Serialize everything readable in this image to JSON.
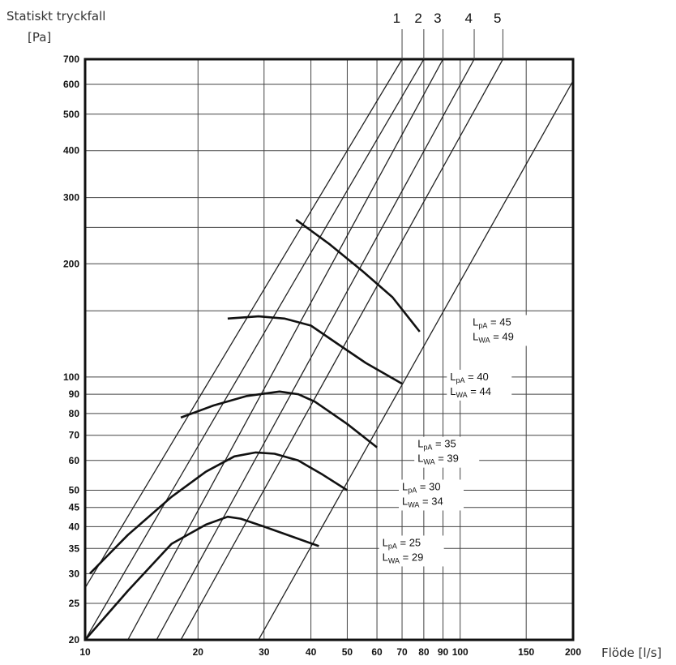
{
  "chart_data": {
    "type": "line",
    "ylabel_lines": [
      "Statiskt tryckfall",
      "[Pa]"
    ],
    "xlabel": "Flöde [l/s]",
    "xscale": "log",
    "yscale": "log",
    "xlim": [
      10,
      200
    ],
    "ylim": [
      20,
      700
    ],
    "grid": true,
    "x_ticks": [
      {
        "value": 10,
        "label": "10"
      },
      {
        "value": 20,
        "label": "20"
      },
      {
        "value": 30,
        "label": "30"
      },
      {
        "value": 40,
        "label": "40"
      },
      {
        "value": 50,
        "label": "50"
      },
      {
        "value": 60,
        "label": "60"
      },
      {
        "value": 70,
        "label": "70"
      },
      {
        "value": 80,
        "label": "80"
      },
      {
        "value": 90,
        "label": "90"
      },
      {
        "value": 100,
        "label": "100"
      },
      {
        "value": 150,
        "label": "150"
      },
      {
        "value": 200,
        "label": "200"
      }
    ],
    "y_ticks": [
      {
        "value": 20,
        "label": "20"
      },
      {
        "value": 25,
        "label": "25"
      },
      {
        "value": 30,
        "label": "30"
      },
      {
        "value": 35,
        "label": "35"
      },
      {
        "value": 40,
        "label": "40"
      },
      {
        "value": 45,
        "label": "45"
      },
      {
        "value": 50,
        "label": "50"
      },
      {
        "value": 60,
        "label": "60"
      },
      {
        "value": 70,
        "label": "70"
      },
      {
        "value": 80,
        "label": "80"
      },
      {
        "value": 90,
        "label": "90"
      },
      {
        "value": 100,
        "label": "100"
      },
      {
        "value": 200,
        "label": "200"
      },
      {
        "value": 300,
        "label": "300"
      },
      {
        "value": 400,
        "label": "400"
      },
      {
        "value": 500,
        "label": "500"
      },
      {
        "value": 600,
        "label": "600"
      },
      {
        "value": 700,
        "label": "700"
      }
    ],
    "extra_y_gridlines": [
      150,
      250
    ],
    "setting_lines": [
      {
        "name": "1",
        "points": [
          [
            10,
            27.5
          ],
          [
            70,
            700
          ]
        ]
      },
      {
        "name": "2",
        "points": [
          [
            10,
            20
          ],
          [
            80,
            700
          ]
        ]
      },
      {
        "name": "3",
        "points": [
          [
            13,
            20
          ],
          [
            90,
            700
          ]
        ]
      },
      {
        "name": "4",
        "points": [
          [
            15.5,
            20
          ],
          [
            109,
            700
          ]
        ]
      },
      {
        "name": "5",
        "points": [
          [
            18,
            20
          ],
          [
            130,
            700
          ]
        ]
      },
      {
        "points": [
          [
            29,
            20
          ],
          [
            200,
            613
          ]
        ]
      }
    ],
    "series": [
      {
        "points": [
          [
            10,
            20
          ],
          [
            13,
            27
          ],
          [
            17,
            36
          ],
          [
            21,
            40.5
          ],
          [
            24,
            42.5
          ],
          [
            26,
            42
          ],
          [
            30,
            40
          ],
          [
            36,
            37.5
          ],
          [
            42,
            35.5
          ]
        ]
      },
      {
        "points": [
          [
            10.3,
            30
          ],
          [
            13,
            38
          ],
          [
            17,
            48
          ],
          [
            21,
            56
          ],
          [
            25,
            61.5
          ],
          [
            28.5,
            63
          ],
          [
            32,
            62.5
          ],
          [
            37,
            60
          ],
          [
            43,
            55
          ],
          [
            50,
            50
          ]
        ]
      },
      {
        "points": [
          [
            18,
            78
          ],
          [
            22,
            84
          ],
          [
            27,
            89
          ],
          [
            33,
            91.5
          ],
          [
            37,
            90
          ],
          [
            41,
            86
          ],
          [
            50,
            75
          ],
          [
            60,
            65
          ]
        ]
      },
      {
        "points": [
          [
            24,
            143
          ],
          [
            29,
            145
          ],
          [
            34,
            143
          ],
          [
            40,
            137
          ],
          [
            48,
            121
          ],
          [
            56,
            109
          ],
          [
            70,
            96
          ]
        ]
      },
      {
        "points": [
          [
            36.5,
            262
          ],
          [
            45,
            225
          ],
          [
            55,
            191
          ],
          [
            66,
            163
          ],
          [
            78,
            132
          ]
        ]
      }
    ],
    "annotations": [
      {
        "lpa": "45",
        "lwa": "49",
        "at": [
          108,
          137
        ]
      },
      {
        "lpa": "40",
        "lwa": "44",
        "at": [
          94,
          98
        ]
      },
      {
        "lpa": "35",
        "lwa": "39",
        "at": [
          77,
          65
        ]
      },
      {
        "lpa": "30",
        "lwa": "34",
        "at": [
          70,
          50
        ]
      },
      {
        "lpa": "25",
        "lwa": "29",
        "at": [
          62,
          35.5
        ]
      }
    ]
  }
}
